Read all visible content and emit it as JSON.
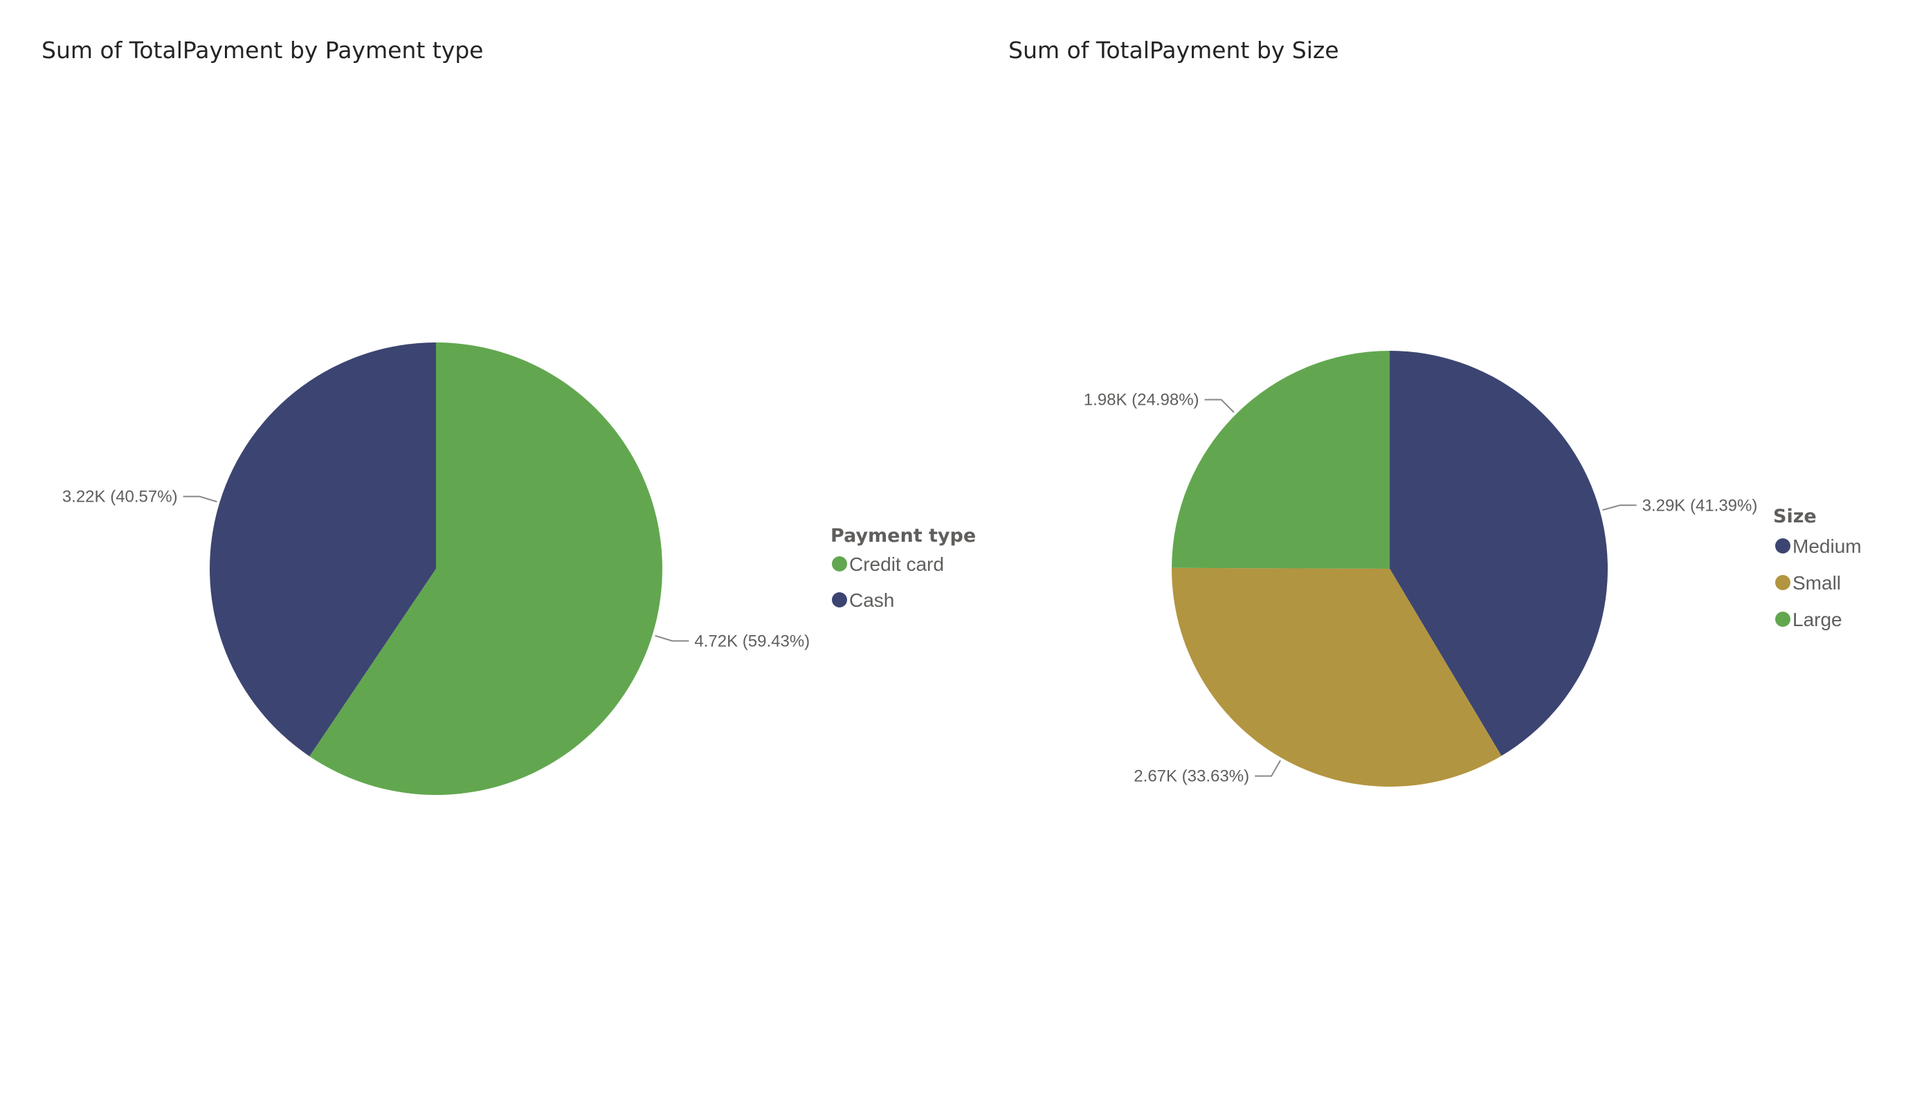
{
  "chart_data": [
    {
      "type": "pie",
      "title": "Sum of TotalPayment by Payment type",
      "legend_title": "Payment type",
      "legend_position": "right",
      "slices": [
        {
          "label": "Credit card",
          "value": 4720,
          "value_label": "4.72K (59.43%)",
          "color": "#62A74F"
        },
        {
          "label": "Cash",
          "value": 3220,
          "value_label": "3.22K (40.57%)",
          "color": "#3C4571"
        }
      ]
    },
    {
      "type": "pie",
      "title": "Sum of TotalPayment by Size",
      "legend_title": "Size",
      "legend_position": "right",
      "slices": [
        {
          "label": "Medium",
          "value": 3290,
          "value_label": "3.29K (41.39%)",
          "color": "#3C4571"
        },
        {
          "label": "Small",
          "value": 2670,
          "value_label": "2.67K (33.63%)",
          "color": "#B29540"
        },
        {
          "label": "Large",
          "value": 1980,
          "value_label": "1.98K (24.98%)",
          "color": "#62A74F"
        }
      ]
    }
  ]
}
